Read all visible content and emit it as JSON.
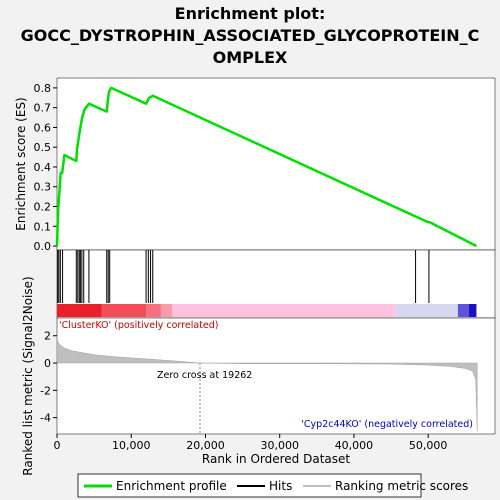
{
  "chart_data": {
    "type": "line",
    "title_lines": [
      "Enrichment plot:",
      "GOCC_DYSTROPHIN_ASSOCIATED_GLYCOPROTEIN_C",
      "OMPLEX"
    ],
    "es_panel": {
      "ylabel": "Enrichment score (ES)",
      "ylim": [
        -0.02,
        0.85
      ],
      "yticks": [
        0.0,
        0.1,
        0.2,
        0.3,
        0.4,
        0.5,
        0.6,
        0.7,
        0.8
      ],
      "ytick_labels": [
        "0.0",
        "0.1",
        "0.2",
        "0.3",
        "0.4",
        "0.5",
        "0.6",
        "0.7",
        "0.8"
      ],
      "series": [
        {
          "name": "Enrichment profile",
          "color": "#00e000",
          "x": [
            0,
            150,
            300,
            500,
            700,
            1000,
            2600,
            2700,
            2900,
            3100,
            3400,
            3700,
            4300,
            6700,
            6850,
            7000,
            7300,
            12000,
            12400,
            12900,
            50000,
            50200,
            56500
          ],
          "y": [
            0.0,
            0.18,
            0.26,
            0.37,
            0.37,
            0.46,
            0.43,
            0.49,
            0.54,
            0.59,
            0.65,
            0.69,
            0.72,
            0.68,
            0.74,
            0.78,
            0.8,
            0.72,
            0.75,
            0.76,
            0.12,
            0.12,
            0.0
          ]
        }
      ]
    },
    "hits": {
      "name": "Hits",
      "x": [
        100,
        250,
        450,
        750,
        2600,
        2800,
        3000,
        3150,
        3350,
        3600,
        4300,
        6700,
        6900,
        7100,
        12000,
        12300,
        12600,
        12900,
        48300,
        50100
      ]
    },
    "ranked_metric": {
      "ylabel": "Ranked list metric (Signal2Noise)",
      "ylim": [
        -5.2,
        3.3
      ],
      "yticks": [
        -4,
        -2,
        0,
        2
      ],
      "ytick_labels": [
        "-4",
        "-2",
        "0",
        "2"
      ],
      "zero_cross_x": 19262,
      "zero_cross_label": "Zero cross at 19262",
      "positive_label": "'ClusterKO' (positively correlated)",
      "negative_label": "'Cyp2c44KO' (negatively correlated)",
      "positive_color": "#cc0000",
      "negative_color": "#0000cc",
      "fill_color": "#bfbfbf",
      "curve_x": [
        0,
        100,
        300,
        600,
        1000,
        2000,
        3000,
        5000,
        8000,
        12000,
        16000,
        19262,
        25000,
        35000,
        45000,
        50000,
        53000,
        55000,
        56000,
        56400,
        56600
      ],
      "curve_y": [
        2.0,
        1.6,
        1.4,
        1.25,
        1.1,
        0.9,
        0.8,
        0.6,
        0.45,
        0.3,
        0.15,
        0.0,
        -0.05,
        -0.05,
        -0.08,
        -0.15,
        -0.25,
        -0.4,
        -0.6,
        -1.2,
        -5.0
      ]
    },
    "x_axis": {
      "label": "Rank in Ordered Dataset",
      "xlim": [
        0,
        59000
      ],
      "ticks": [
        0,
        10000,
        20000,
        30000,
        40000,
        50000
      ],
      "tick_labels": [
        "0",
        "10,000",
        "20,000",
        "30,000",
        "40,000",
        "50,000"
      ]
    },
    "color_bar": [
      {
        "from": 0,
        "to": 6000,
        "color": "#e8202a"
      },
      {
        "from": 6000,
        "to": 12000,
        "color": "#f24d58"
      },
      {
        "from": 12000,
        "to": 14000,
        "color": "#f86f7e"
      },
      {
        "from": 14000,
        "to": 15500,
        "color": "#fb9aa8"
      },
      {
        "from": 15500,
        "to": 45500,
        "color": "#ffc2de"
      },
      {
        "from": 45500,
        "to": 54000,
        "color": "#d9d6f2"
      },
      {
        "from": 54000,
        "to": 55500,
        "color": "#5b55d8"
      },
      {
        "from": 55500,
        "to": 56500,
        "color": "#1a10c8"
      }
    ],
    "legend": {
      "position": "bottom",
      "items": [
        {
          "label": "Enrichment profile",
          "color": "#00e000"
        },
        {
          "label": "Hits",
          "color": "#000000"
        },
        {
          "label": "Ranking metric scores",
          "color": "#bfbfbf"
        }
      ]
    }
  }
}
